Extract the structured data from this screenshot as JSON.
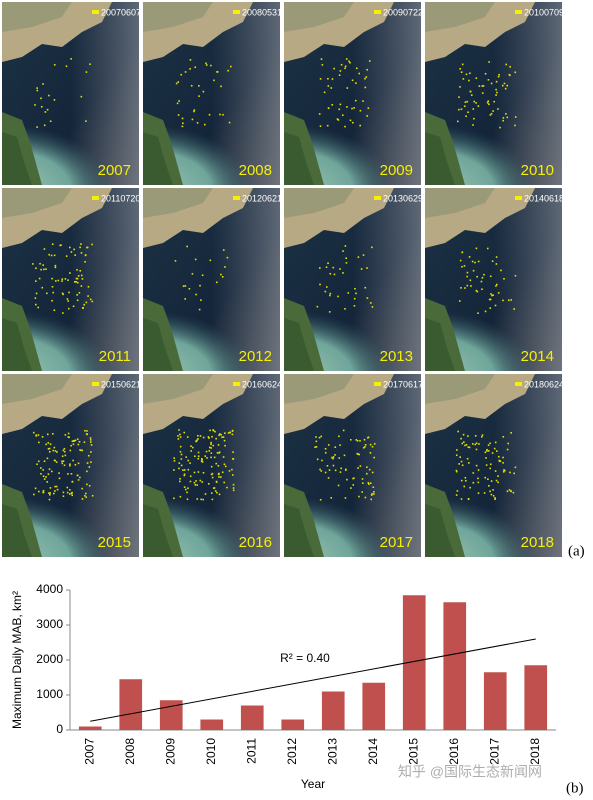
{
  "images": [
    {
      "date": "20070607",
      "year": "2007"
    },
    {
      "date": "20080531",
      "year": "2008"
    },
    {
      "date": "20090722",
      "year": "2009"
    },
    {
      "date": "20100709",
      "year": "2010"
    },
    {
      "date": "20110720",
      "year": "2011"
    },
    {
      "date": "20120621",
      "year": "2012"
    },
    {
      "date": "20130629",
      "year": "2013"
    },
    {
      "date": "20140618",
      "year": "2014"
    },
    {
      "date": "20150621",
      "year": "2015"
    },
    {
      "date": "20160624",
      "year": "2016"
    },
    {
      "date": "20170617",
      "year": "2017"
    },
    {
      "date": "20180624",
      "year": "2018"
    }
  ],
  "panel_labels": [
    "(a)",
    "(b)"
  ],
  "watermark": "知乎 @国际生态新闻网",
  "chart_data": {
    "type": "bar",
    "x_label": "Year",
    "y_label": "Maximum Daily MAB, km²",
    "annotation": "R² = 0.40",
    "categories": [
      "2007",
      "2008",
      "2009",
      "2010",
      "2011",
      "2012",
      "2013",
      "2014",
      "2015",
      "2016",
      "2017",
      "2018"
    ],
    "values": [
      100,
      1450,
      850,
      300,
      700,
      300,
      1100,
      1350,
      3850,
      3650,
      1650,
      1850
    ],
    "color": "#c0504d",
    "trendline": {
      "values": [
        250,
        2600
      ],
      "color": "#000000"
    },
    "ylim": [
      0,
      4000
    ],
    "yticks": [
      0,
      1000,
      2000,
      3000,
      4000
    ]
  }
}
